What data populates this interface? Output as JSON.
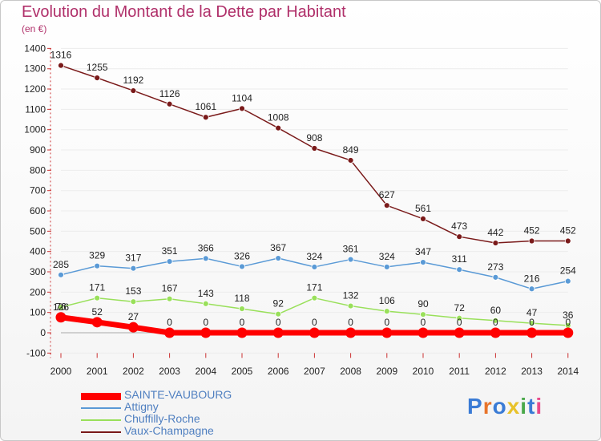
{
  "header": {
    "title": "Evolution du Montant de la Dette par Habitant",
    "unit": "(en €)"
  },
  "logo": {
    "text": "Proxiti"
  },
  "chart_data": {
    "type": "line",
    "title": "Evolution du Montant de la Dette par Habitant",
    "ylabel": "(en €)",
    "xlabel": "",
    "x": [
      "2000",
      "2001",
      "2002",
      "2003",
      "2004",
      "2005",
      "2006",
      "2007",
      "2008",
      "2009",
      "2010",
      "2011",
      "2012",
      "2013",
      "2014"
    ],
    "ylim": [
      -100,
      1400
    ],
    "yticks": [
      -100,
      0,
      100,
      200,
      300,
      400,
      500,
      600,
      700,
      800,
      900,
      1000,
      1100,
      1200,
      1300,
      1400
    ],
    "legend_position": "bottom-left",
    "series": [
      {
        "name": "SAINTE-VAUBOURG",
        "color": "#ff0000",
        "values": [
          76,
          52,
          27,
          0,
          0,
          0,
          0,
          0,
          0,
          0,
          0,
          0,
          0,
          0,
          0
        ]
      },
      {
        "name": "Attigny",
        "color": "#5a9ad6",
        "values": [
          285,
          329,
          317,
          351,
          366,
          326,
          367,
          324,
          361,
          324,
          347,
          311,
          273,
          216,
          254
        ]
      },
      {
        "name": "Chuffilly-Roche",
        "color": "#99e05a",
        "values": [
          126,
          171,
          153,
          167,
          143,
          118,
          92,
          171,
          132,
          106,
          90,
          72,
          60,
          47,
          36
        ]
      },
      {
        "name": "Vaux-Champagne",
        "color": "#7a1a1a",
        "values": [
          1316,
          1255,
          1192,
          1126,
          1061,
          1104,
          1008,
          908,
          849,
          627,
          561,
          473,
          442,
          452,
          452
        ]
      }
    ]
  }
}
